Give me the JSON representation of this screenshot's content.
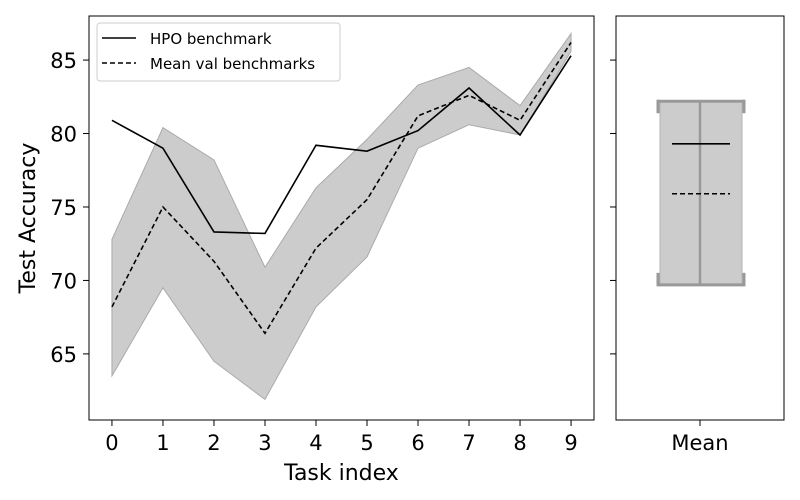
{
  "chart_data": [
    {
      "type": "line",
      "xlabel": "Task index",
      "ylabel": "Test Accuracy",
      "x": [
        0,
        1,
        2,
        3,
        4,
        5,
        6,
        7,
        8,
        9
      ],
      "xlim": [
        -0.45,
        9.45
      ],
      "ylim": [
        60.5,
        88.0
      ],
      "yticks": [
        65,
        70,
        75,
        80,
        85
      ],
      "grid": false,
      "legend_position": "top-left",
      "series": [
        {
          "name": "HPO benchmark",
          "style": "solid",
          "values": [
            80.9,
            79.0,
            73.3,
            73.2,
            79.2,
            78.8,
            80.2,
            83.1,
            79.9,
            85.3
          ]
        },
        {
          "name": "Mean val benchmarks",
          "style": "dashed",
          "values": [
            68.2,
            75.0,
            71.3,
            66.4,
            72.2,
            75.5,
            81.2,
            82.6,
            80.9,
            86.2
          ]
        }
      ],
      "band": {
        "lower": [
          63.5,
          69.5,
          64.5,
          61.9,
          68.2,
          71.6,
          79.0,
          80.6,
          79.9,
          85.6
        ],
        "upper": [
          72.8,
          80.4,
          78.2,
          70.9,
          76.3,
          79.6,
          83.3,
          84.5,
          81.9,
          86.8
        ],
        "color": "#cccccc"
      },
      "colors": {
        "line": "#000000",
        "band": "#cccccc",
        "band_edge": "#aaaaaa"
      }
    },
    {
      "type": "box",
      "categories": [
        "Mean"
      ],
      "ylim": [
        60.5,
        88.0
      ],
      "box_low": 69.7,
      "box_high": 82.2,
      "solid_line": 79.3,
      "dashed_line": 75.9,
      "colors": {
        "box": "#cccccc",
        "box_edge": "#999999"
      }
    }
  ]
}
